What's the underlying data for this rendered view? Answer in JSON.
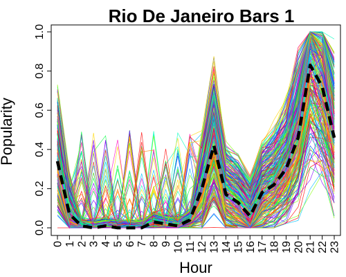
{
  "chart_data": {
    "type": "line",
    "title": "Rio De Janeiro Bars 1",
    "xlabel": "Hour",
    "ylabel": "Popularity",
    "xlim": [
      0,
      23
    ],
    "ylim": [
      0,
      1
    ],
    "x_ticks": [
      "0",
      "1",
      "2",
      "3",
      "4",
      "5",
      "6",
      "7",
      "8",
      "9",
      "10",
      "11",
      "12",
      "13",
      "14",
      "15",
      "16",
      "17",
      "18",
      "19",
      "20",
      "21",
      "22",
      "23"
    ],
    "y_ticks": [
      "0.0",
      "0.2",
      "0.4",
      "0.6",
      "0.8",
      "1.0"
    ],
    "grid": false,
    "legend": "none",
    "background_series": {
      "count": 300,
      "style": "thin lines, rainbow palette",
      "colors": [
        "#ff0000",
        "#ff8000",
        "#ffd700",
        "#80ff00",
        "#00ff40",
        "#00ffc0",
        "#00c0ff",
        "#0040ff",
        "#8000ff",
        "#ff00c0"
      ]
    },
    "mean_series": {
      "style": "thick black dashed",
      "color": "#000000",
      "x": [
        0,
        1,
        2,
        3,
        4,
        5,
        6,
        7,
        8,
        9,
        10,
        11,
        12,
        13,
        14,
        15,
        16,
        17,
        18,
        19,
        20,
        21,
        22,
        23
      ],
      "values": [
        0.34,
        0.07,
        0.01,
        0.0,
        0.01,
        0.0,
        0.0,
        0.0,
        0.03,
        0.02,
        0.01,
        0.04,
        0.2,
        0.42,
        0.17,
        0.13,
        0.06,
        0.18,
        0.22,
        0.3,
        0.46,
        0.83,
        0.72,
        0.46
      ]
    }
  }
}
